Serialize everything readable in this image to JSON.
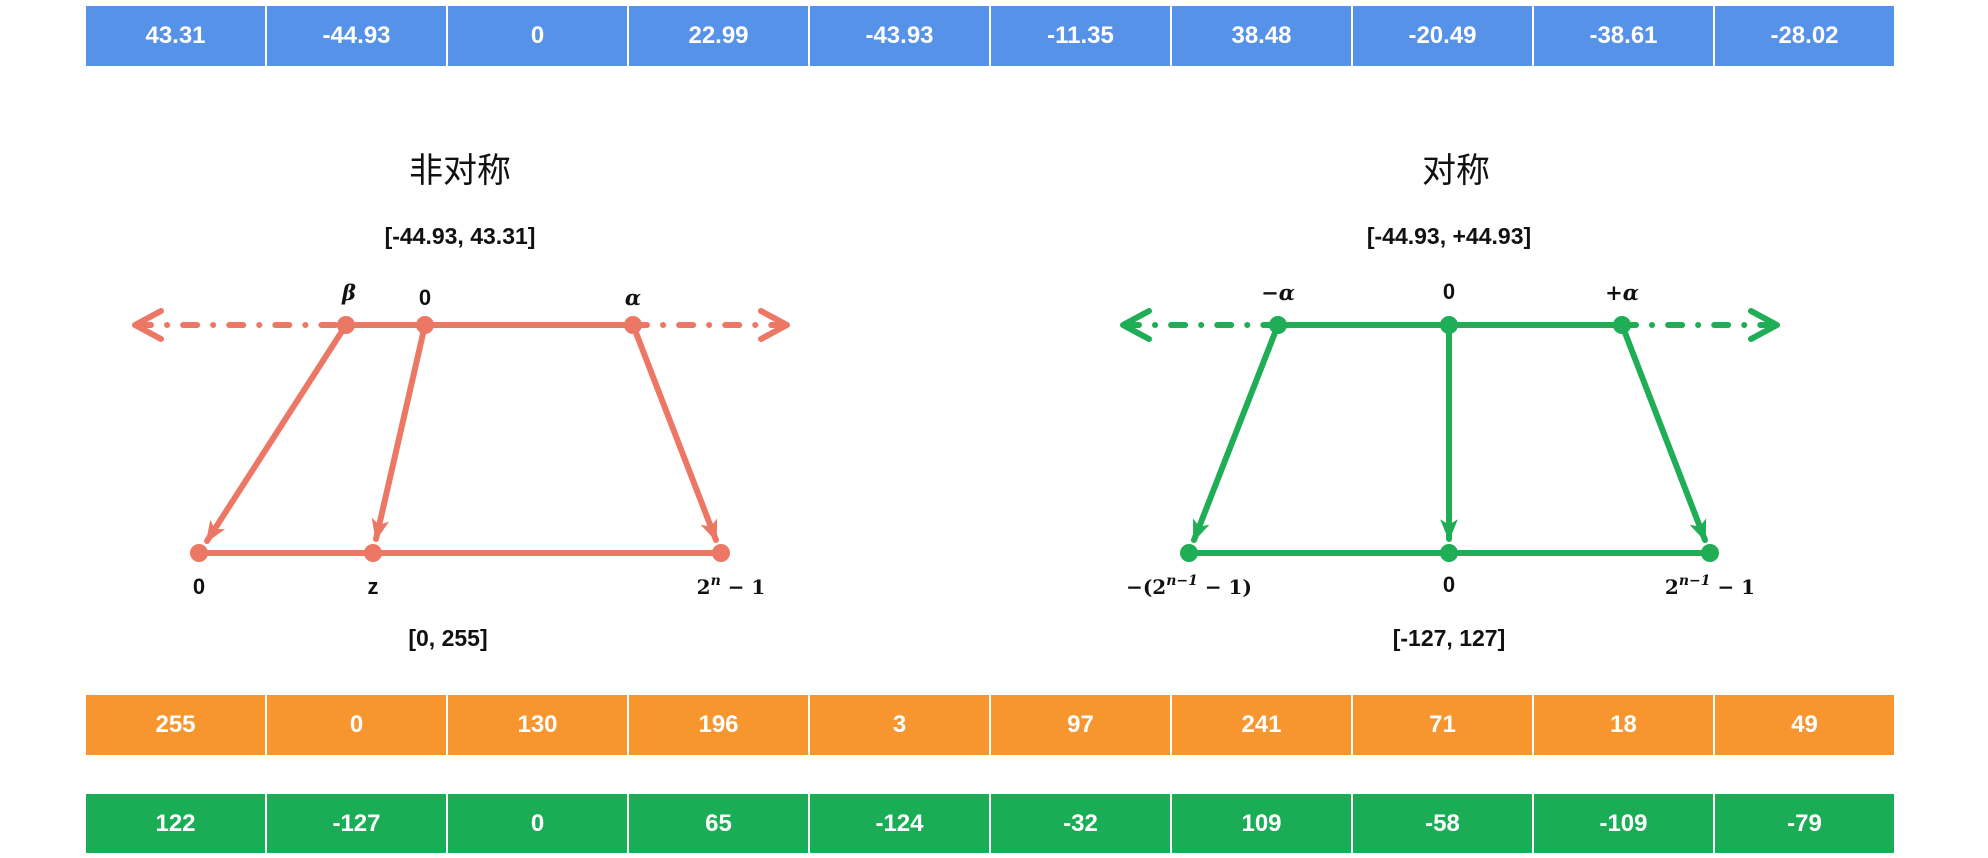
{
  "tables": {
    "fp32": {
      "color": "#5592e8",
      "values": [
        "43.31",
        "-44.93",
        "0",
        "22.99",
        "-43.93",
        "-11.35",
        "38.48",
        "-20.49",
        "-38.61",
        "-28.02"
      ]
    },
    "uint8": {
      "color": "#f7962f",
      "values": [
        "255",
        "0",
        "130",
        "196",
        "3",
        "97",
        "241",
        "71",
        "18",
        "49"
      ]
    },
    "int8": {
      "color": "#1aad55",
      "values": [
        "122",
        "-127",
        "0",
        "65",
        "-124",
        "-32",
        "109",
        "-58",
        "-109",
        "-79"
      ]
    }
  },
  "asymmetric": {
    "color": "#ec7765",
    "title": "非对称",
    "range_float": "[-44.93, 43.31]",
    "range_int": "[0, 255]",
    "top_labels": {
      "beta": "β",
      "zero": "0",
      "alpha": "α"
    },
    "bottom_labels": {
      "zero": "0",
      "z": "z",
      "max": {
        "base": "2",
        "sup": "n",
        "rest": " − 1"
      }
    }
  },
  "symmetric": {
    "color": "#1fad55",
    "title": "对称",
    "range_float": "[-44.93, +44.93]",
    "range_int": "[-127, 127]",
    "top_labels": {
      "neg_alpha": "−α",
      "zero": "0",
      "pos_alpha": "+α"
    },
    "bottom_labels": {
      "min": {
        "prefix": "−(2",
        "sup": "n−1",
        "rest": " − 1)"
      },
      "zero": "0",
      "max": {
        "base": "2",
        "sup": "n−1",
        "rest": " − 1"
      }
    }
  }
}
